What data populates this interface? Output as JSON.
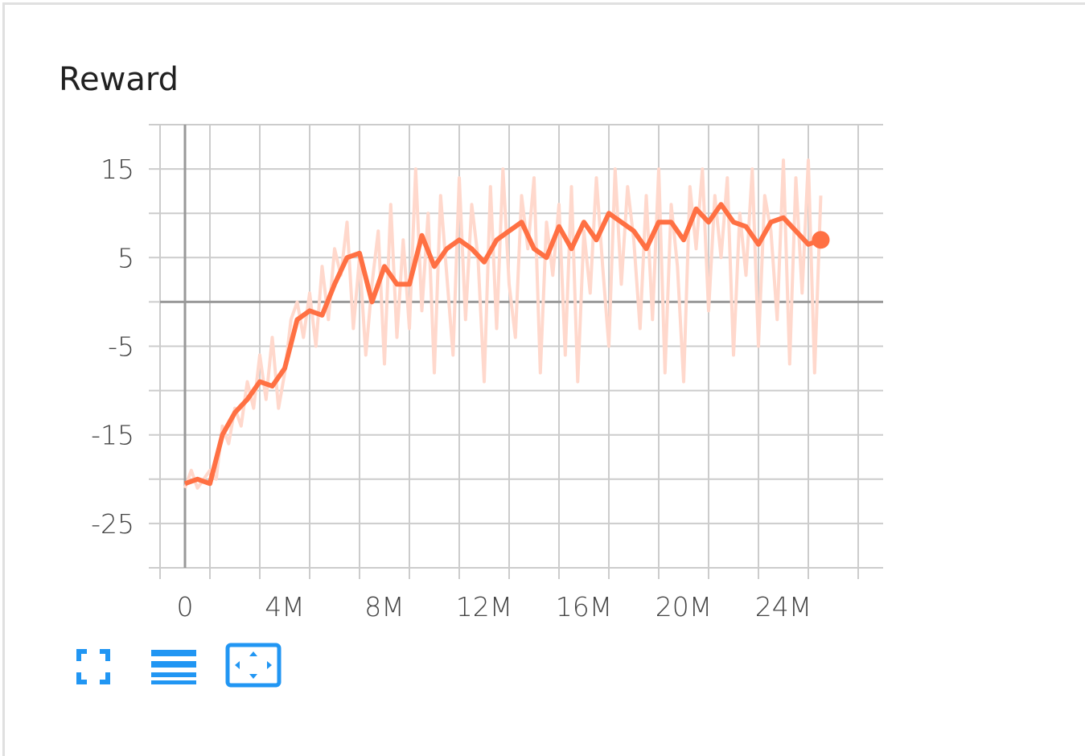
{
  "card": {
    "title": "Reward"
  },
  "toolbar": {
    "buttons": [
      {
        "name": "fullscreen-icon"
      },
      {
        "name": "lines-icon"
      },
      {
        "name": "fit-domain-icon"
      }
    ]
  },
  "colors": {
    "smoothed": "#ff7043",
    "raw": "#ffd8cc",
    "grid": "#cccccc",
    "axis_zero": "#999999",
    "icon": "#2196f3"
  },
  "chart_data": {
    "type": "line",
    "title": "Reward",
    "xlabel": "",
    "ylabel": "",
    "xlim": [
      -1000000,
      28000000
    ],
    "ylim": [
      -30,
      20
    ],
    "x_ticks": [
      0,
      4000000,
      8000000,
      12000000,
      16000000,
      20000000,
      24000000
    ],
    "x_tick_labels": [
      "0",
      "4M",
      "8M",
      "12M",
      "16M",
      "20M",
      "24M"
    ],
    "y_ticks": [
      15,
      5,
      -5,
      -15,
      -25
    ],
    "y_tick_labels": [
      "15",
      "5",
      "-5",
      "-15",
      "-25"
    ],
    "grid": true,
    "series": [
      {
        "role": "smoothed",
        "x": [
          0,
          500000,
          1000000,
          1500000,
          2000000,
          2500000,
          3000000,
          3500000,
          4000000,
          4500000,
          5000000,
          5500000,
          6000000,
          6500000,
          7000000,
          7500000,
          8000000,
          8500000,
          9000000,
          9500000,
          10000000,
          10500000,
          11000000,
          11500000,
          12000000,
          12500000,
          13000000,
          13500000,
          14000000,
          14500000,
          15000000,
          15500000,
          16000000,
          16500000,
          17000000,
          17500000,
          18000000,
          18500000,
          19000000,
          19500000,
          20000000,
          20500000,
          21000000,
          21500000,
          22000000,
          22500000,
          23000000,
          23500000,
          24000000,
          24500000,
          25000000,
          25500000
        ],
        "y": [
          -20.5,
          -20,
          -20.5,
          -15,
          -12.5,
          -11,
          -9,
          -9.5,
          -7.5,
          -2,
          -1,
          -1.5,
          2,
          5,
          5.5,
          0,
          4,
          2,
          2,
          7.5,
          4,
          6,
          7,
          6,
          4.5,
          7,
          8,
          9,
          6,
          5,
          8.5,
          6,
          9,
          7,
          10,
          9,
          8,
          6,
          9,
          9,
          7,
          10.5,
          9,
          11,
          9,
          8.5,
          6.5,
          9,
          9.5,
          8,
          6.5,
          7
        ]
      },
      {
        "role": "raw",
        "x": [
          0,
          250000,
          500000,
          750000,
          1000000,
          1250000,
          1500000,
          1750000,
          2000000,
          2250000,
          2500000,
          2750000,
          3000000,
          3250000,
          3500000,
          3750000,
          4000000,
          4250000,
          4500000,
          4750000,
          5000000,
          5250000,
          5500000,
          5750000,
          6000000,
          6250000,
          6500000,
          6750000,
          7000000,
          7250000,
          7500000,
          7750000,
          8000000,
          8250000,
          8500000,
          8750000,
          9000000,
          9250000,
          9500000,
          9750000,
          10000000,
          10250000,
          10500000,
          10750000,
          11000000,
          11250000,
          11500000,
          11750000,
          12000000,
          12250000,
          12500000,
          12750000,
          13000000,
          13250000,
          13500000,
          13750000,
          14000000,
          14250000,
          14500000,
          14750000,
          15000000,
          15250000,
          15500000,
          15750000,
          16000000,
          16250000,
          16500000,
          16750000,
          17000000,
          17250000,
          17500000,
          17750000,
          18000000,
          18250000,
          18500000,
          18750000,
          19000000,
          19250000,
          19500000,
          19750000,
          20000000,
          20250000,
          20500000,
          20750000,
          21000000,
          21250000,
          21500000,
          21750000,
          22000000,
          22250000,
          22500000,
          22750000,
          23000000,
          23250000,
          23500000,
          23750000,
          24000000,
          24250000,
          24500000,
          24750000,
          25000000,
          25250000,
          25500000
        ],
        "y": [
          -21,
          -19,
          -21,
          -20,
          -19,
          -20,
          -14,
          -16,
          -12,
          -14,
          -9,
          -12,
          -6,
          -11,
          -4,
          -12,
          -8,
          -2,
          0,
          -4,
          1,
          -5,
          4,
          -2,
          6,
          3,
          9,
          -3,
          5,
          -6,
          2,
          8,
          -7,
          11,
          -4,
          7,
          -3,
          15,
          -1,
          10,
          -8,
          12,
          3,
          -6,
          14,
          -2,
          11,
          5,
          -9,
          13,
          -3,
          15,
          2,
          -4,
          12,
          6,
          14,
          -8,
          9,
          3,
          11,
          -6,
          13,
          -9,
          8,
          1,
          14,
          4,
          -5,
          15,
          2,
          13,
          7,
          -3,
          12,
          -2,
          15,
          -8,
          11,
          4,
          -9,
          13,
          6,
          15,
          -1,
          12,
          5,
          14,
          -6,
          10,
          3,
          15,
          -5,
          12,
          8,
          -2,
          16,
          -7,
          14,
          1,
          16,
          -8,
          12
        ]
      }
    ]
  }
}
